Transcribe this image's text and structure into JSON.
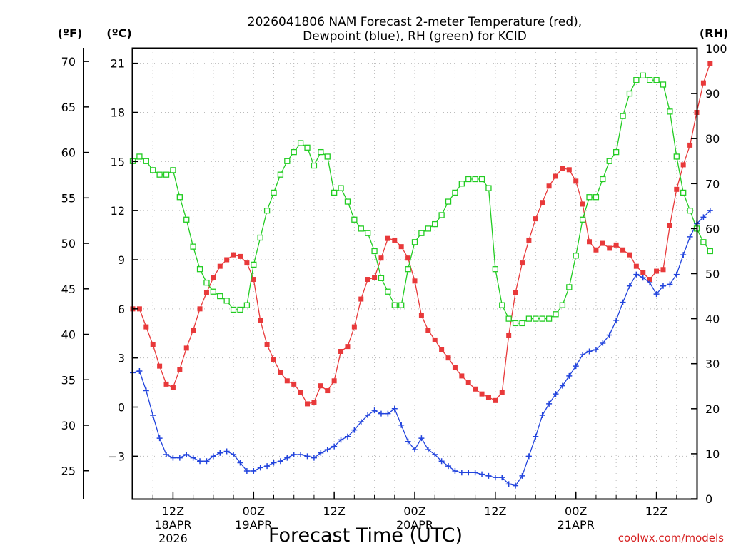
{
  "chart_data": {
    "type": "line",
    "title_line1": "2026041806 NAM Forecast 2-meter Temperature (red),",
    "title_line2": "Dewpoint (blue), RH (green) for KCID",
    "xlabel": "Forecast Time (UTC)",
    "credit": "coolwx.com/models",
    "unit_f": "(ºF)",
    "unit_c": "(ºC)",
    "unit_rh": "(RH)",
    "x_ticks": [
      {
        "hour": 6,
        "label1": "12Z",
        "label2": "18APR",
        "label3": "2026"
      },
      {
        "hour": 18,
        "label1": "00Z",
        "label2": "19APR",
        "label3": ""
      },
      {
        "hour": 30,
        "label1": "12Z",
        "label2": "",
        "label3": ""
      },
      {
        "hour": 42,
        "label1": "00Z",
        "label2": "20APR",
        "label3": ""
      },
      {
        "hour": 54,
        "label1": "12Z",
        "label2": "",
        "label3": ""
      },
      {
        "hour": 66,
        "label1": "00Z",
        "label2": "21APR",
        "label3": ""
      },
      {
        "hour": 78,
        "label1": "12Z",
        "label2": "",
        "label3": ""
      }
    ],
    "x_range": [
      0,
      84
    ],
    "c_range": [
      -5.6,
      21.9
    ],
    "c_ticks": [
      -3,
      0,
      3,
      6,
      9,
      12,
      15,
      18,
      21
    ],
    "c_tick_labels": [
      "−3",
      "0",
      "3",
      "6",
      "9",
      "12",
      "15",
      "18",
      "21"
    ],
    "f_ticks": [
      25,
      30,
      35,
      40,
      45,
      50,
      55,
      60,
      65,
      70
    ],
    "rh_range": [
      0,
      100
    ],
    "rh_ticks": [
      0,
      10,
      20,
      30,
      40,
      50,
      60,
      70,
      80,
      90,
      100
    ],
    "grid": true,
    "series": [
      {
        "name": "Temperature",
        "color": "#e8393a",
        "marker": "filled-square",
        "values": [
          6.0,
          6.0,
          4.9,
          3.8,
          2.5,
          1.4,
          1.2,
          2.3,
          3.6,
          4.7,
          6.0,
          7.0,
          7.9,
          8.6,
          9.0,
          9.3,
          9.2,
          8.8,
          7.8,
          5.3,
          3.8,
          2.9,
          2.1,
          1.6,
          1.4,
          0.9,
          0.2,
          0.3,
          1.3,
          1.0,
          1.6,
          3.4,
          3.7,
          4.9,
          6.6,
          7.8,
          7.9,
          9.1,
          10.3,
          10.2,
          9.8,
          9.1,
          7.7,
          5.6,
          4.7,
          4.1,
          3.5,
          3.0,
          2.4,
          1.9,
          1.5,
          1.1,
          0.8,
          0.6,
          0.4,
          0.9,
          4.4,
          7.0,
          8.8,
          10.2,
          11.5,
          12.5,
          13.5,
          14.1,
          14.6,
          14.5,
          13.8,
          12.4,
          10.1,
          9.6,
          10.0,
          9.7,
          9.9,
          9.6,
          9.3,
          8.6,
          8.2,
          7.8,
          8.3,
          8.4,
          11.1,
          13.3,
          14.8,
          16.0,
          18.0,
          19.8,
          21.0
        ]
      },
      {
        "name": "Dewpoint",
        "color": "#2244dd",
        "marker": "plus",
        "values": [
          2.1,
          2.2,
          1.0,
          -0.5,
          -1.9,
          -2.9,
          -3.1,
          -3.1,
          -2.9,
          -3.1,
          -3.3,
          -3.3,
          -3.0,
          -2.8,
          -2.7,
          -2.9,
          -3.4,
          -3.9,
          -3.9,
          -3.7,
          -3.6,
          -3.4,
          -3.3,
          -3.1,
          -2.9,
          -2.9,
          -3.0,
          -3.1,
          -2.8,
          -2.6,
          -2.4,
          -2.0,
          -1.8,
          -1.4,
          -0.9,
          -0.5,
          -0.2,
          -0.4,
          -0.4,
          -0.1,
          -1.1,
          -2.1,
          -2.6,
          -1.9,
          -2.6,
          -2.9,
          -3.3,
          -3.6,
          -3.9,
          -4.0,
          -4.0,
          -4.0,
          -4.1,
          -4.2,
          -4.3,
          -4.3,
          -4.7,
          -4.8,
          -4.2,
          -3.0,
          -1.8,
          -0.5,
          0.2,
          0.8,
          1.3,
          1.9,
          2.5,
          3.2,
          3.4,
          3.5,
          3.9,
          4.4,
          5.3,
          6.4,
          7.4,
          8.1,
          7.9,
          7.6,
          6.9,
          7.4,
          7.5,
          8.1,
          9.3,
          10.4,
          11.2,
          11.6,
          12.0
        ]
      },
      {
        "name": "RH",
        "color": "#22cc22",
        "marker": "open-square",
        "values": [
          75,
          76,
          75,
          73,
          72,
          72,
          73,
          67,
          62,
          56,
          51,
          48,
          46,
          45,
          44,
          42,
          42,
          43,
          52,
          58,
          64,
          68,
          72,
          75,
          77,
          79,
          78,
          74,
          77,
          76,
          68,
          69,
          66,
          62,
          60,
          59,
          55,
          49,
          46,
          43,
          43,
          51,
          57,
          59,
          60,
          61,
          63,
          66,
          68,
          70,
          71,
          71,
          71,
          69,
          51,
          43,
          40,
          39,
          39,
          40,
          40,
          40,
          40,
          41,
          43,
          47,
          54,
          62,
          67,
          67,
          71,
          75,
          77,
          85,
          90,
          93,
          94,
          93,
          93,
          92,
          86,
          76,
          68,
          64,
          60,
          57,
          55
        ]
      }
    ]
  }
}
